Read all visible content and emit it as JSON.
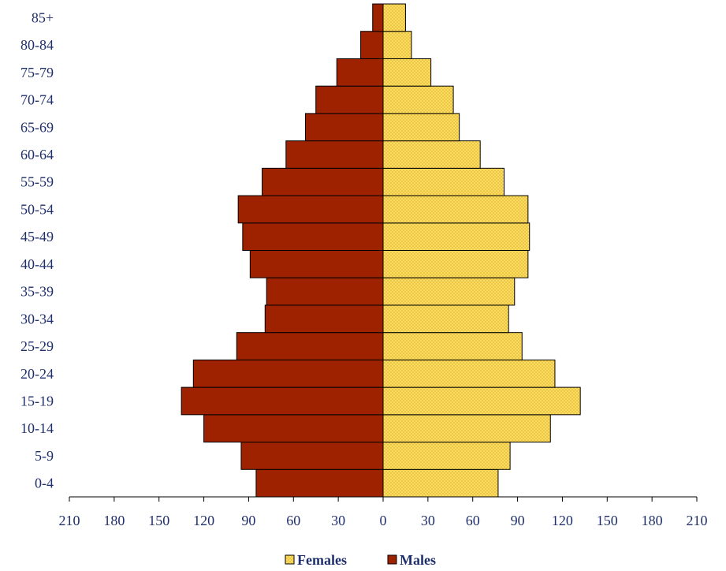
{
  "chart_data": {
    "type": "bar",
    "orientation": "horizontal",
    "subtype": "population-pyramid",
    "categories": [
      "0-4",
      "5-9",
      "10-14",
      "15-19",
      "20-24",
      "25-29",
      "30-34",
      "35-39",
      "40-44",
      "45-49",
      "50-54",
      "55-59",
      "60-64",
      "65-69",
      "70-74",
      "75-79",
      "80-84",
      "85+"
    ],
    "series": [
      {
        "name": "Females",
        "color": "#f5d34a",
        "pattern": "fine-crosshatch",
        "values": [
          77,
          85,
          112,
          132,
          115,
          93,
          84,
          88,
          97,
          98,
          97,
          81,
          65,
          51,
          47,
          32,
          19,
          15
        ]
      },
      {
        "name": "Males",
        "color": "#9e2200",
        "values": [
          85,
          95,
          120,
          135,
          127,
          98,
          79,
          78,
          89,
          94,
          97,
          81,
          65,
          52,
          45,
          31,
          15,
          7
        ]
      }
    ],
    "x_ticks": [
      "210",
      "180",
      "150",
      "120",
      "90",
      "60",
      "30",
      "0",
      "30",
      "60",
      "90",
      "120",
      "150",
      "180",
      "210"
    ],
    "xlim": [
      -210,
      210
    ],
    "title": "",
    "xlabel": "",
    "ylabel": "",
    "grid": false,
    "legend_position": "bottom-center",
    "text_color": "#1f2f6b",
    "axis_color": "#000000"
  }
}
